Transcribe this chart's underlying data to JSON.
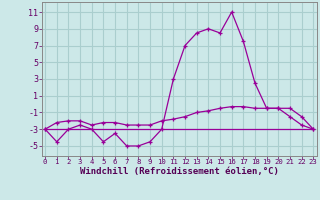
{
  "x": [
    0,
    1,
    2,
    3,
    4,
    5,
    6,
    7,
    8,
    9,
    10,
    11,
    12,
    13,
    14,
    15,
    16,
    17,
    18,
    19,
    20,
    21,
    22,
    23
  ],
  "windchill": [
    -3,
    -4.5,
    -3,
    -2.5,
    -3,
    -4.5,
    -3.5,
    -5,
    -5,
    -4.5,
    -3,
    3,
    7,
    8.5,
    9,
    8.5,
    11,
    7.5,
    2.5,
    -0.5,
    -0.5,
    -1.5,
    -2.5,
    -3
  ],
  "temperature": [
    -3,
    -2.2,
    -2,
    -2,
    -2.5,
    -2.2,
    -2.2,
    -2.5,
    -2.5,
    -2.5,
    -2,
    -1.8,
    -1.5,
    -1,
    -0.8,
    -0.5,
    -0.3,
    -0.3,
    -0.5,
    -0.5,
    -0.5,
    -0.5,
    -1.5,
    -3
  ],
  "flat_line": [
    -3,
    -3,
    -3,
    -3,
    -3,
    -3,
    -3,
    -3,
    -3,
    -3,
    -3,
    -3,
    -3,
    -3,
    -3,
    -3,
    -3,
    -3,
    -3,
    -3,
    -3,
    -3,
    -3,
    -3
  ],
  "line_color": "#990099",
  "bg_color": "#cce8e8",
  "grid_color": "#aacece",
  "xlabel": "Windchill (Refroidissement éolien,°C)",
  "xlabel_fontsize": 6.5,
  "yticks": [
    -5,
    -3,
    -1,
    1,
    3,
    5,
    7,
    9,
    11
  ],
  "ylim": [
    -6.2,
    12.2
  ],
  "xlim": [
    -0.3,
    23.3
  ]
}
